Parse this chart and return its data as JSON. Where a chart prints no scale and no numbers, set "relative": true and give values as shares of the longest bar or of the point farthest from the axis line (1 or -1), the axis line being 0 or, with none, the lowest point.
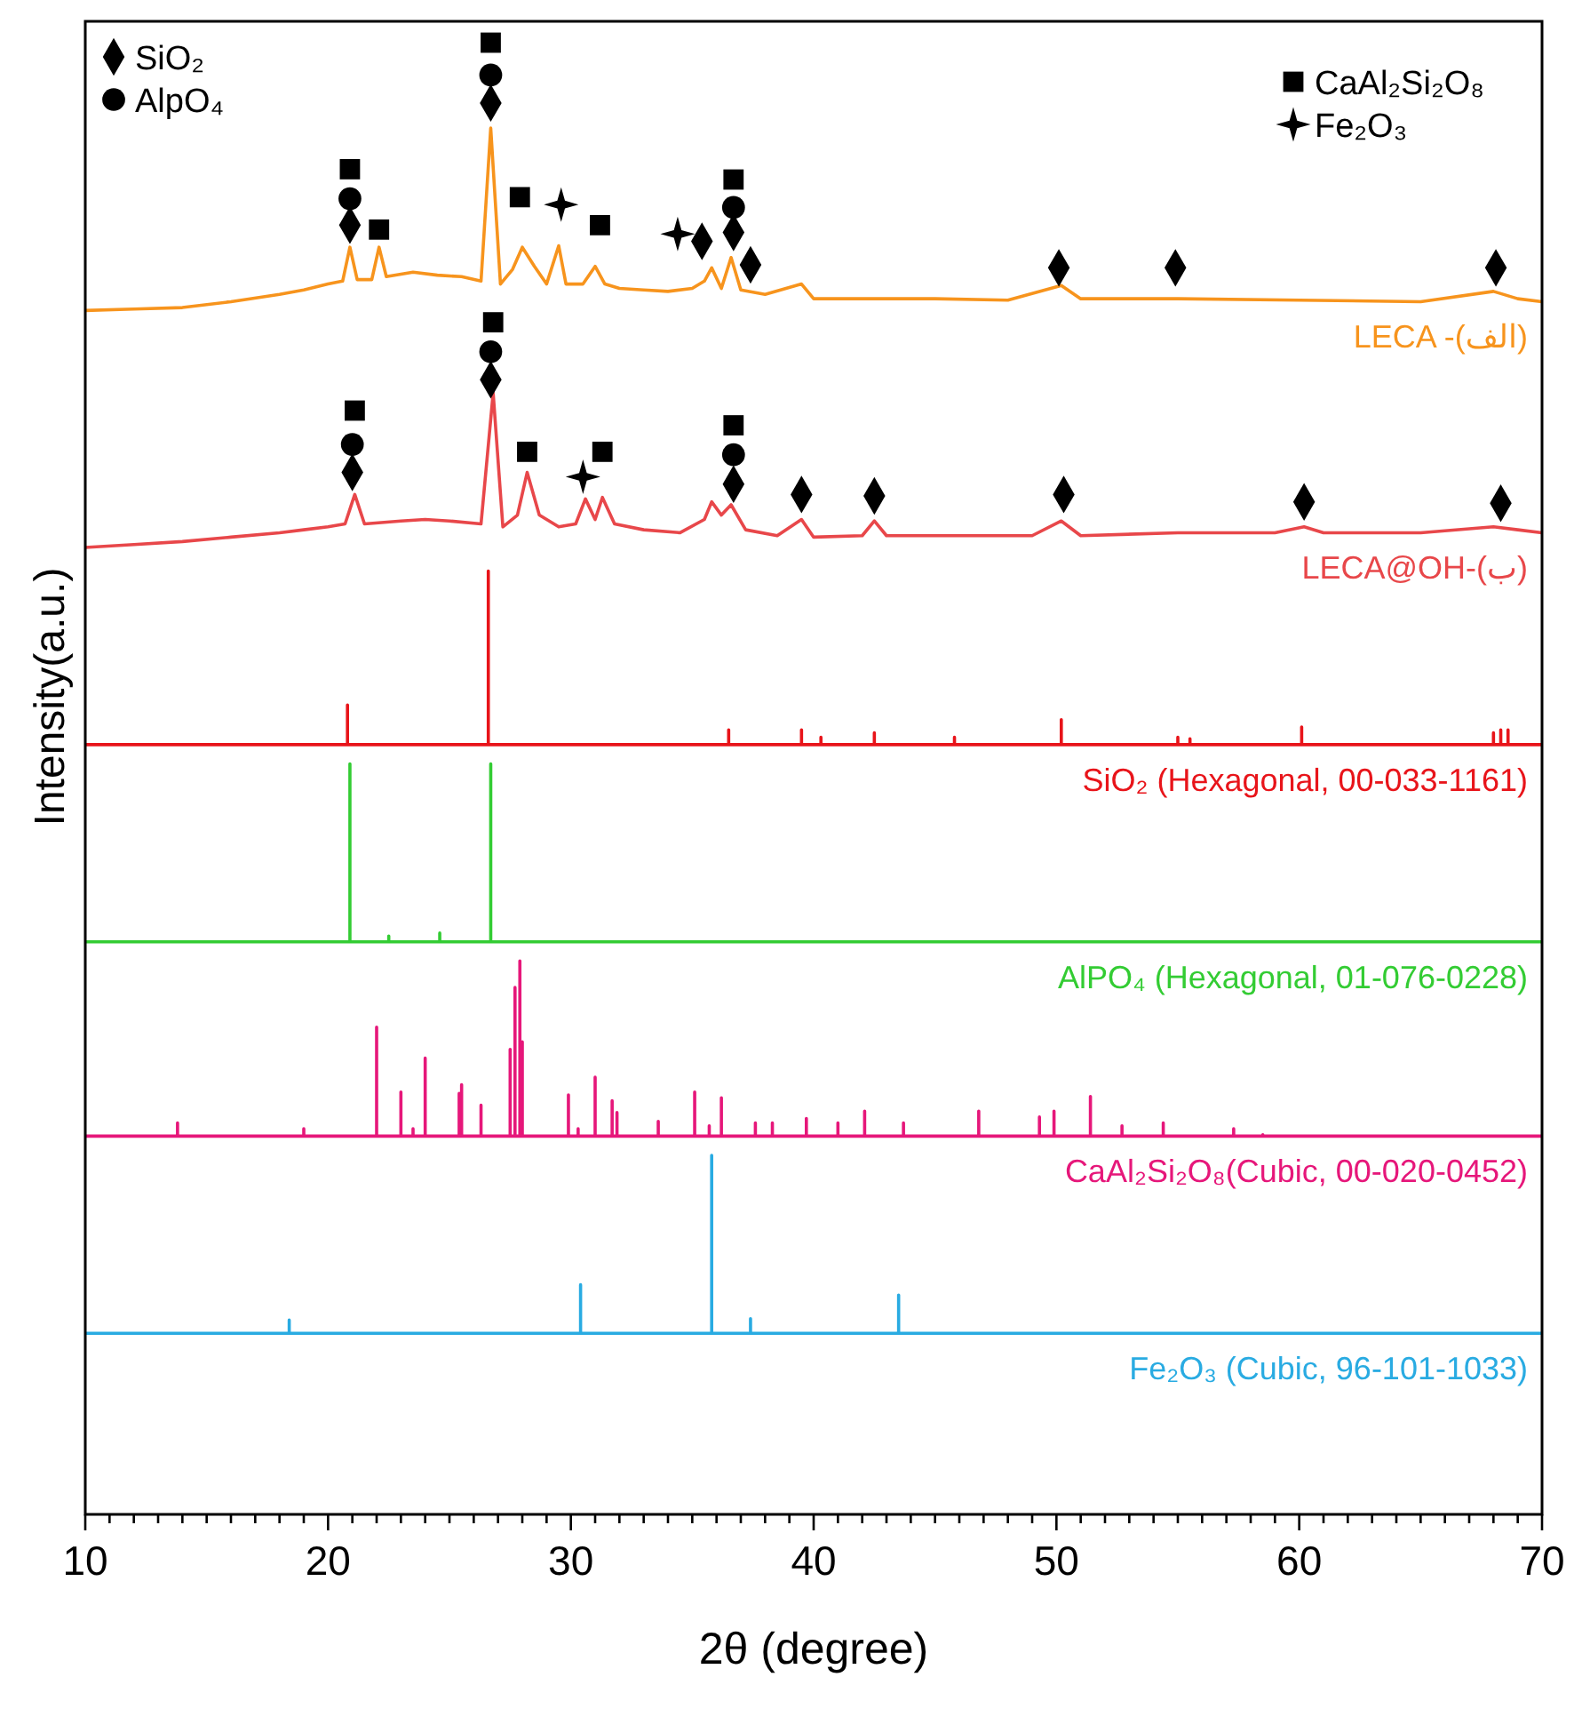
{
  "chart_data": {
    "type": "line",
    "relative": true,
    "xlabel": "2θ (degree)",
    "ylabel": "Intensity(a.u.)",
    "xlim": [
      10,
      70
    ],
    "xticks": [
      10,
      {
        "value": 11,
        "label": null
      },
      {
        "value": 12,
        "label": null
      },
      {
        "value": 13,
        "label": null
      },
      {
        "value": 14,
        "label": null
      },
      {
        "value": 15,
        "label": null
      },
      {
        "value": 16,
        "label": null
      },
      {
        "value": 17,
        "label": null
      },
      {
        "value": 18,
        "label": null
      },
      {
        "value": 19,
        "label": null
      },
      20,
      {
        "value": 21,
        "label": null
      },
      {
        "value": 22,
        "label": null
      },
      {
        "value": 23,
        "label": null
      },
      {
        "value": 24,
        "label": null
      },
      {
        "value": 25,
        "label": null
      },
      {
        "value": 26,
        "label": null
      },
      {
        "value": 27,
        "label": null
      },
      {
        "value": 28,
        "label": null
      },
      {
        "value": 29,
        "label": null
      },
      30,
      {
        "value": 31,
        "label": null
      },
      {
        "value": 32,
        "label": null
      },
      {
        "value": 33,
        "label": null
      },
      {
        "value": 34,
        "label": null
      },
      {
        "value": 35,
        "label": null
      },
      {
        "value": 36,
        "label": null
      },
      {
        "value": 37,
        "label": null
      },
      {
        "value": 38,
        "label": null
      },
      {
        "value": 39,
        "label": null
      },
      40,
      {
        "value": 41,
        "label": null
      },
      {
        "value": 42,
        "label": null
      },
      {
        "value": 43,
        "label": null
      },
      {
        "value": 44,
        "label": null
      },
      {
        "value": 45,
        "label": null
      },
      {
        "value": 46,
        "label": null
      },
      {
        "value": 47,
        "label": null
      },
      {
        "value": 48,
        "label": null
      },
      {
        "value": 49,
        "label": null
      },
      50,
      {
        "value": 51,
        "label": null
      },
      {
        "value": 52,
        "label": null
      },
      {
        "value": 53,
        "label": null
      },
      {
        "value": 54,
        "label": null
      },
      {
        "value": 55,
        "label": null
      },
      {
        "value": 56,
        "label": null
      },
      {
        "value": 57,
        "label": null
      },
      {
        "value": 58,
        "label": null
      },
      {
        "value": 59,
        "label": null
      },
      60,
      {
        "value": 61,
        "label": null
      },
      {
        "value": 62,
        "label": null
      },
      {
        "value": 63,
        "label": null
      },
      {
        "value": 64,
        "label": null
      },
      {
        "value": 65,
        "label": null
      },
      {
        "value": 66,
        "label": null
      },
      {
        "value": 67,
        "label": null
      },
      {
        "value": 68,
        "label": null
      },
      {
        "value": 69,
        "label": null
      },
      70
    ],
    "grid": false,
    "legend": "top",
    "line_style": "solid",
    "series": [
      {
        "name": "LECA -(الف)",
        "color": "#f7941d",
        "x": [
          10,
          12,
          14,
          16,
          18,
          19,
          20,
          20.6,
          20.9,
          21.2,
          21.8,
          22.1,
          22.4,
          23.5,
          24.5,
          25.5,
          26.3,
          26.7,
          27.1,
          27.6,
          28.0,
          28.5,
          29.0,
          29.5,
          29.8,
          30.5,
          31.0,
          31.4,
          32,
          33,
          34,
          35,
          35.5,
          35.8,
          36.2,
          36.6,
          37.0,
          38,
          39.5,
          40,
          42,
          45,
          48,
          50.2,
          51,
          55,
          60,
          65,
          68,
          69,
          70
        ],
        "values": [
          0.818,
          0.819,
          0.82,
          0.824,
          0.829,
          0.832,
          0.836,
          0.838,
          0.861,
          0.839,
          0.839,
          0.861,
          0.841,
          0.844,
          0.842,
          0.841,
          0.838,
          0.942,
          0.836,
          0.846,
          0.861,
          0.848,
          0.836,
          0.862,
          0.836,
          0.836,
          0.848,
          0.836,
          0.833,
          0.832,
          0.831,
          0.833,
          0.838,
          0.847,
          0.833,
          0.854,
          0.832,
          0.829,
          0.836,
          0.826,
          0.826,
          0.826,
          0.825,
          0.835,
          0.826,
          0.826,
          0.825,
          0.824,
          0.831,
          0.826,
          0.824
        ]
      },
      {
        "name": "LECA@OH-(ب)",
        "color": "#e8474a",
        "x": [
          10,
          12,
          14,
          16,
          18,
          19,
          20,
          20.7,
          21.1,
          21.5,
          23,
          24,
          25,
          26.3,
          26.8,
          27.2,
          27.8,
          28.2,
          28.7,
          29.5,
          30.2,
          30.6,
          31.0,
          31.3,
          31.8,
          33,
          34.5,
          35.5,
          35.8,
          36.2,
          36.6,
          37.2,
          38.5,
          39.5,
          40,
          42,
          42.5,
          43,
          46,
          49,
          50.2,
          51,
          55,
          59,
          60.2,
          61,
          65,
          68,
          69,
          70
        ],
        "values": [
          0.657,
          0.659,
          0.661,
          0.664,
          0.667,
          0.669,
          0.671,
          0.673,
          0.693,
          0.673,
          0.675,
          0.676,
          0.675,
          0.673,
          0.762,
          0.671,
          0.679,
          0.708,
          0.679,
          0.671,
          0.673,
          0.69,
          0.676,
          0.691,
          0.673,
          0.669,
          0.667,
          0.676,
          0.688,
          0.679,
          0.686,
          0.669,
          0.665,
          0.676,
          0.664,
          0.665,
          0.675,
          0.665,
          0.665,
          0.665,
          0.675,
          0.665,
          0.667,
          0.667,
          0.671,
          0.667,
          0.667,
          0.671,
          0.669,
          0.667
        ]
      },
      {
        "name": "SiO₂ (Hexagonal, 00-033-1161)",
        "color": "#e8141a",
        "x": [
          10,
          20.8,
          20.8,
          20.8,
          26.6,
          26.6,
          26.6,
          36.5,
          36.5,
          36.5,
          39.5,
          39.5,
          39.5,
          40.3,
          40.3,
          40.3,
          42.5,
          42.5,
          42.5,
          45.8,
          45.8,
          45.8,
          50.2,
          50.2,
          50.2,
          55.0,
          55.0,
          55.0,
          55.5,
          55.5,
          55.5,
          60.1,
          60.1,
          60.1,
          68.0,
          68.0,
          68.0,
          68.3,
          68.3,
          68.3,
          68.6,
          68.6,
          68.6,
          70
        ],
        "values": [
          0.523,
          0.523,
          0.55,
          0.523,
          0.523,
          0.641,
          0.523,
          0.523,
          0.533,
          0.523,
          0.523,
          0.533,
          0.523,
          0.523,
          0.528,
          0.523,
          0.523,
          0.531,
          0.523,
          0.523,
          0.528,
          0.523,
          0.523,
          0.54,
          0.523,
          0.523,
          0.528,
          0.523,
          0.523,
          0.527,
          0.523,
          0.523,
          0.535,
          0.523,
          0.523,
          0.531,
          0.523,
          0.523,
          0.533,
          0.523,
          0.523,
          0.533,
          0.523,
          0.523
        ]
      },
      {
        "name": "AlPO₄ (Hexagonal, 01-076-0228)",
        "color": "#33cc33",
        "x": [
          10,
          20.9,
          20.9,
          20.9,
          22.5,
          22.5,
          22.5,
          24.6,
          24.6,
          24.6,
          26.7,
          26.7,
          26.7,
          70
        ],
        "values": [
          0.389,
          0.389,
          0.51,
          0.389,
          0.389,
          0.393,
          0.389,
          0.389,
          0.395,
          0.389,
          0.389,
          0.51,
          0.389,
          0.389
        ]
      },
      {
        "name": "CaAl₂Si₂O₈(Cubic, 00-020-0452)",
        "color": "#e6177a",
        "x": [
          10,
          13.8,
          13.8,
          13.8,
          19.0,
          19.0,
          19.0,
          22.0,
          22.0,
          22.0,
          23.0,
          23.0,
          23.0,
          23.5,
          23.5,
          23.5,
          24.0,
          24.0,
          24.0,
          25.4,
          25.4,
          25.4,
          25.5,
          25.5,
          25.5,
          26.3,
          26.3,
          26.3,
          27.5,
          27.5,
          27.5,
          27.7,
          27.7,
          27.7,
          27.9,
          27.9,
          27.9,
          28.0,
          28.0,
          28.0,
          29.9,
          29.9,
          29.9,
          30.3,
          30.3,
          30.3,
          31.0,
          31.0,
          31.0,
          31.7,
          31.7,
          31.7,
          31.9,
          31.9,
          31.9,
          33.6,
          33.6,
          33.6,
          35.1,
          35.1,
          35.1,
          35.7,
          35.7,
          35.7,
          36.2,
          36.2,
          36.2,
          37.6,
          37.6,
          37.6,
          38.3,
          38.3,
          38.3,
          39.7,
          39.7,
          39.7,
          41.0,
          41.0,
          41.0,
          42.1,
          42.1,
          42.1,
          43.7,
          43.7,
          43.7,
          46.8,
          46.8,
          46.8,
          49.3,
          49.3,
          49.3,
          49.9,
          49.9,
          49.9,
          51.4,
          51.4,
          51.4,
          52.7,
          52.7,
          52.7,
          54.4,
          54.4,
          54.4,
          57.3,
          57.3,
          57.3,
          58.5,
          58.5,
          58.5,
          70
        ],
        "values": [
          0.257,
          0.257,
          0.266,
          0.257,
          0.257,
          0.262,
          0.257,
          0.257,
          0.331,
          0.257,
          0.257,
          0.287,
          0.257,
          0.257,
          0.262,
          0.257,
          0.257,
          0.31,
          0.257,
          0.257,
          0.286,
          0.257,
          0.257,
          0.292,
          0.257,
          0.257,
          0.278,
          0.257,
          0.257,
          0.316,
          0.257,
          0.257,
          0.358,
          0.257,
          0.257,
          0.376,
          0.257,
          0.257,
          0.321,
          0.257,
          0.257,
          0.285,
          0.257,
          0.257,
          0.262,
          0.257,
          0.257,
          0.297,
          0.257,
          0.257,
          0.281,
          0.257,
          0.257,
          0.273,
          0.257,
          0.257,
          0.267,
          0.257,
          0.257,
          0.287,
          0.257,
          0.257,
          0.264,
          0.257,
          0.257,
          0.283,
          0.257,
          0.257,
          0.266,
          0.257,
          0.257,
          0.266,
          0.257,
          0.257,
          0.269,
          0.257,
          0.257,
          0.266,
          0.257,
          0.257,
          0.274,
          0.257,
          0.257,
          0.266,
          0.257,
          0.257,
          0.274,
          0.257,
          0.257,
          0.27,
          0.257,
          0.257,
          0.274,
          0.257,
          0.257,
          0.284,
          0.257,
          0.257,
          0.264,
          0.257,
          0.257,
          0.266,
          0.257,
          0.257,
          0.262,
          0.257,
          0.257,
          0.258,
          0.257,
          0.257
        ]
      },
      {
        "name": "Fe₂O₃ (Cubic, 96-101-1033)",
        "color": "#29abe2",
        "x": [
          10,
          18.4,
          18.4,
          18.4,
          30.4,
          30.4,
          30.4,
          35.8,
          35.8,
          35.8,
          37.4,
          37.4,
          37.4,
          43.5,
          43.5,
          43.5,
          70
        ],
        "values": [
          0.123,
          0.123,
          0.132,
          0.123,
          0.123,
          0.156,
          0.123,
          0.123,
          0.244,
          0.123,
          0.123,
          0.133,
          0.123,
          0.123,
          0.149,
          0.123,
          0.123
        ]
      },
      {
        "name": "SiO₂",
        "type": "scatter",
        "marker": "diamond",
        "color": "#000000",
        "x": [
          20.9,
          26.7,
          35.4,
          36.7,
          37.4,
          50.1,
          54.9,
          68.1,
          21.0,
          26.7,
          36.7,
          39.5,
          42.5,
          50.3,
          60.2,
          68.3
        ],
        "values": [
          0.876,
          0.959,
          0.865,
          0.871,
          0.849,
          0.847,
          0.847,
          0.847,
          0.708,
          0.771,
          0.7,
          0.693,
          0.692,
          0.693,
          0.688,
          0.687
        ]
      },
      {
        "name": "AlpO₄",
        "type": "scatter",
        "marker": "circle",
        "color": "#000000",
        "x": [
          20.9,
          26.7,
          36.7,
          21.0,
          26.7,
          36.7
        ],
        "values": [
          0.894,
          0.978,
          0.888,
          0.727,
          0.79,
          0.72
        ]
      },
      {
        "name": "CaAl₂Si₂O₈",
        "type": "scatter",
        "marker": "square",
        "color": "#000000",
        "x": [
          20.9,
          22.1,
          26.7,
          27.9,
          31.2,
          36.7,
          21.1,
          26.8,
          28.2,
          31.3,
          36.7
        ],
        "values": [
          0.914,
          0.873,
          1.0,
          0.895,
          0.876,
          0.907,
          0.75,
          0.81,
          0.722,
          0.722,
          0.74
        ]
      },
      {
        "name": "Fe₂O₃",
        "type": "scatter",
        "marker": "star",
        "color": "#000000",
        "x": [
          29.6,
          34.4,
          30.5
        ],
        "values": [
          0.89,
          0.87,
          0.705
        ]
      }
    ]
  }
}
